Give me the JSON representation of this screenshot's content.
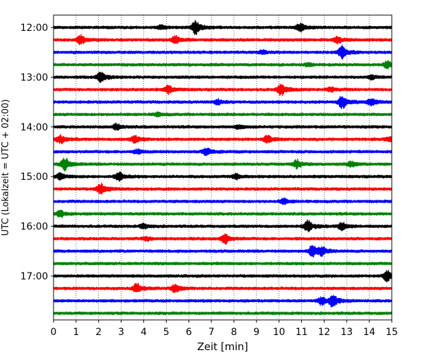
{
  "chart_data": {
    "type": "line",
    "title": "",
    "xlabel": "Zeit  [min]",
    "ylabel": "UTC (Lokalzeit = UTC + 02:00)",
    "xlim": [
      0,
      15
    ],
    "x_ticks": [
      "0",
      "1",
      "2",
      "3",
      "4",
      "5",
      "6",
      "7",
      "8",
      "9",
      "10",
      "11",
      "12",
      "13",
      "14",
      "15"
    ],
    "y_ticks": [
      {
        "label": "12:00",
        "trace": 0
      },
      {
        "label": "13:00",
        "trace": 4
      },
      {
        "label": "14:00",
        "trace": 8
      },
      {
        "label": "15:00",
        "trace": 12
      },
      {
        "label": "16:00",
        "trace": 16
      },
      {
        "label": "17:00",
        "trace": 20
      }
    ],
    "grid": "vertical dotted",
    "color_cycle": [
      "#000000",
      "#ff0000",
      "#0000ff",
      "#008000"
    ],
    "traces": [
      {
        "start": "12:00",
        "color": "#000000",
        "events": [
          {
            "t": 6.3,
            "amp": 1.0
          },
          {
            "t": 4.8,
            "amp": 0.3
          },
          {
            "t": 10.9,
            "amp": 0.35
          },
          {
            "t": 11.0,
            "amp": 0.3
          }
        ]
      },
      {
        "start": "12:15",
        "color": "#ff0000",
        "events": [
          {
            "t": 1.2,
            "amp": 0.75
          },
          {
            "t": 5.4,
            "amp": 0.6
          },
          {
            "t": 12.6,
            "amp": 0.45
          }
        ]
      },
      {
        "start": "12:30",
        "color": "#0000ff",
        "events": [
          {
            "t": 12.8,
            "amp": 0.95
          },
          {
            "t": 9.3,
            "amp": 0.25
          }
        ]
      },
      {
        "start": "12:45",
        "color": "#008000",
        "events": [
          {
            "t": 14.8,
            "amp": 0.5
          },
          {
            "t": 11.3,
            "amp": 0.2
          }
        ]
      },
      {
        "start": "13:00",
        "color": "#000000",
        "events": [
          {
            "t": 2.1,
            "amp": 0.8
          },
          {
            "t": 14.1,
            "amp": 0.3
          }
        ]
      },
      {
        "start": "13:15",
        "color": "#ff0000",
        "events": [
          {
            "t": 10.1,
            "amp": 0.85
          },
          {
            "t": 5.1,
            "amp": 0.6
          },
          {
            "t": 12.3,
            "amp": 0.3
          }
        ]
      },
      {
        "start": "13:30",
        "color": "#0000ff",
        "events": [
          {
            "t": 12.8,
            "amp": 1.0
          },
          {
            "t": 14.1,
            "amp": 0.55
          },
          {
            "t": 7.3,
            "amp": 0.35
          }
        ]
      },
      {
        "start": "13:45",
        "color": "#008000",
        "events": [
          {
            "t": 4.6,
            "amp": 0.25
          }
        ]
      },
      {
        "start": "14:00",
        "color": "#000000",
        "events": [
          {
            "t": 2.8,
            "amp": 0.45
          },
          {
            "t": 8.2,
            "amp": 0.25
          }
        ]
      },
      {
        "start": "14:15",
        "color": "#ff0000",
        "events": [
          {
            "t": 0.3,
            "amp": 0.65
          },
          {
            "t": 3.6,
            "amp": 0.6
          },
          {
            "t": 9.5,
            "amp": 0.55
          },
          {
            "t": 14.9,
            "amp": 0.3
          }
        ]
      },
      {
        "start": "14:30",
        "color": "#0000ff",
        "events": [
          {
            "t": 6.8,
            "amp": 0.65
          },
          {
            "t": 3.7,
            "amp": 0.3
          }
        ]
      },
      {
        "start": "14:45",
        "color": "#008000",
        "events": [
          {
            "t": 0.5,
            "amp": 0.9
          },
          {
            "t": 10.8,
            "amp": 0.6
          },
          {
            "t": 13.2,
            "amp": 0.4
          }
        ]
      },
      {
        "start": "15:00",
        "color": "#000000",
        "events": [
          {
            "t": 2.9,
            "amp": 0.7
          },
          {
            "t": 0.3,
            "amp": 0.45
          },
          {
            "t": 8.1,
            "amp": 0.4
          }
        ]
      },
      {
        "start": "15:15",
        "color": "#ff0000",
        "events": [
          {
            "t": 2.1,
            "amp": 0.8
          }
        ]
      },
      {
        "start": "15:30",
        "color": "#0000ff",
        "events": [
          {
            "t": 10.2,
            "amp": 0.4
          }
        ]
      },
      {
        "start": "15:45",
        "color": "#008000",
        "events": [
          {
            "t": 0.3,
            "amp": 0.5
          }
        ]
      },
      {
        "start": "16:00",
        "color": "#000000",
        "events": [
          {
            "t": 11.3,
            "amp": 0.95
          },
          {
            "t": 12.8,
            "amp": 0.6
          },
          {
            "t": 4.0,
            "amp": 0.35
          }
        ]
      },
      {
        "start": "16:15",
        "color": "#ff0000",
        "events": [
          {
            "t": 7.6,
            "amp": 0.75
          },
          {
            "t": 4.1,
            "amp": 0.3
          }
        ]
      },
      {
        "start": "16:30",
        "color": "#0000ff",
        "events": [
          {
            "t": 11.5,
            "amp": 0.95
          },
          {
            "t": 11.9,
            "amp": 0.5
          }
        ]
      },
      {
        "start": "16:45",
        "color": "#008000",
        "events": []
      },
      {
        "start": "17:00",
        "color": "#000000",
        "events": [
          {
            "t": 14.8,
            "amp": 0.85
          }
        ]
      },
      {
        "start": "17:15",
        "color": "#ff0000",
        "events": [
          {
            "t": 3.7,
            "amp": 0.7
          },
          {
            "t": 5.4,
            "amp": 0.65
          }
        ]
      },
      {
        "start": "17:30",
        "color": "#0000ff",
        "events": [
          {
            "t": 12.4,
            "amp": 0.95
          },
          {
            "t": 11.9,
            "amp": 0.6
          }
        ]
      },
      {
        "start": "17:45",
        "color": "#008000",
        "events": []
      }
    ]
  }
}
